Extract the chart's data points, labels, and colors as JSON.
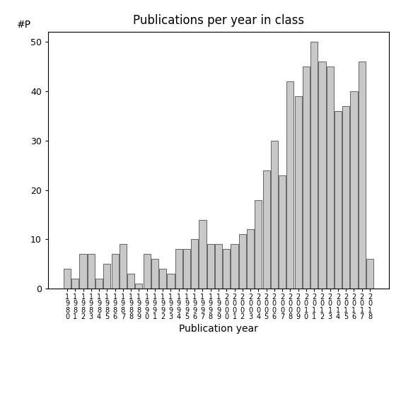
{
  "title": "Publications per year in class",
  "xlabel": "Publication year",
  "ylabel": "#P",
  "bar_color": "#c8c8c8",
  "edge_color": "#333333",
  "background_color": "#ffffff",
  "ylim": [
    0,
    52
  ],
  "yticks": [
    0,
    10,
    20,
    30,
    40,
    50
  ],
  "categories": [
    "1980",
    "1981",
    "1982",
    "1983",
    "1984",
    "1985",
    "1986",
    "1987",
    "1988",
    "1989",
    "1990",
    "1991",
    "1992",
    "1993",
    "1994",
    "1995",
    "1996",
    "1997",
    "1998",
    "1999",
    "2000",
    "2001",
    "2002",
    "2003",
    "2004",
    "2005",
    "2006",
    "2007",
    "2008",
    "2009",
    "2010",
    "2011",
    "2012",
    "2013",
    "2014",
    "2015",
    "2016",
    "2017",
    "2018"
  ],
  "values": [
    4,
    2,
    7,
    7,
    2,
    5,
    7,
    9,
    3,
    1,
    7,
    6,
    4,
    3,
    8,
    8,
    10,
    14,
    9,
    9,
    8,
    9,
    11,
    12,
    18,
    24,
    30,
    23,
    42,
    39,
    45,
    50,
    46,
    45,
    36,
    37,
    40,
    46,
    6
  ],
  "title_fontsize": 12,
  "axis_fontsize": 10,
  "tick_fontsize": 7
}
